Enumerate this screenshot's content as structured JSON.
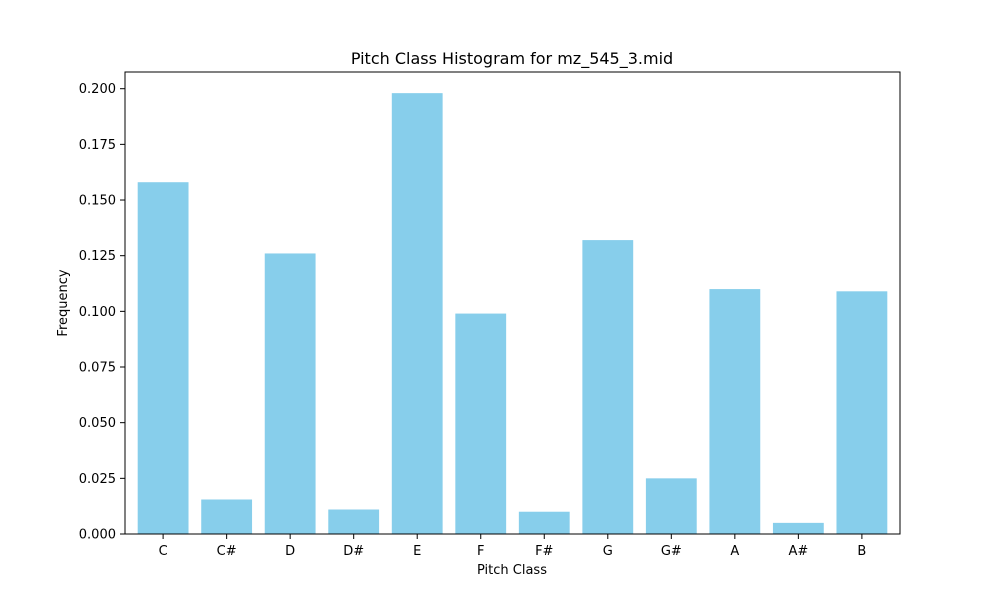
{
  "chart_data": {
    "type": "bar",
    "title": "Pitch Class Histogram for mz_545_3.mid",
    "xlabel": "Pitch Class",
    "ylabel": "Frequency",
    "categories": [
      "C",
      "C#",
      "D",
      "D#",
      "E",
      "F",
      "F#",
      "G",
      "G#",
      "A",
      "A#",
      "B"
    ],
    "values": [
      0.158,
      0.0155,
      0.126,
      0.011,
      0.198,
      0.099,
      0.01,
      0.132,
      0.025,
      0.11,
      0.005,
      0.109
    ],
    "ylim": [
      0,
      0.2075
    ],
    "yticks": [
      "0.000",
      "0.025",
      "0.050",
      "0.075",
      "0.100",
      "0.125",
      "0.150",
      "0.175",
      "0.200"
    ],
    "grid": false,
    "bar_color": "#87CEEB"
  }
}
